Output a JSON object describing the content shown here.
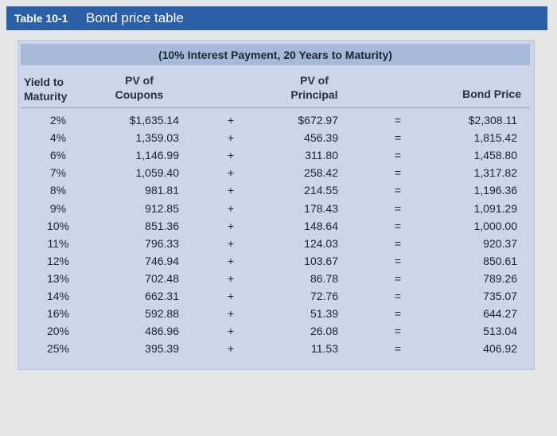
{
  "header": {
    "label": "Table 10-1",
    "title": "Bond price table"
  },
  "table": {
    "subtitle": "(10% Interest Payment, 20 Years to Maturity)",
    "columns": [
      [
        "Yield to",
        "Maturity"
      ],
      [
        "PV of",
        "Coupons"
      ],
      [
        "PV of",
        "Principal"
      ],
      [
        "Bond Price"
      ]
    ],
    "rows": [
      [
        "2%",
        "$1,635.14",
        "+",
        "$672.97",
        "=",
        "$2,308.11"
      ],
      [
        "4%",
        "1,359.03",
        "+",
        "456.39",
        "=",
        "1,815.42"
      ],
      [
        "6%",
        "1,146.99",
        "+",
        "311.80",
        "=",
        "1,458.80"
      ],
      [
        "7%",
        "1,059.40",
        "+",
        "258.42",
        "=",
        "1,317.82"
      ],
      [
        "8%",
        "981.81",
        "+",
        "214.55",
        "=",
        "1,196.36"
      ],
      [
        "9%",
        "912.85",
        "+",
        "178.43",
        "=",
        "1,091.29"
      ],
      [
        "10%",
        "851.36",
        "+",
        "148.64",
        "=",
        "1,000.00"
      ],
      [
        "11%",
        "796.33",
        "+",
        "124.03",
        "=",
        "920.37"
      ],
      [
        "12%",
        "746.94",
        "+",
        "103.67",
        "=",
        "850.61"
      ],
      [
        "13%",
        "702.48",
        "+",
        "86.78",
        "=",
        "789.26"
      ],
      [
        "14%",
        "662.31",
        "+",
        "72.76",
        "=",
        "735.07"
      ],
      [
        "16%",
        "592.88",
        "+",
        "51.39",
        "=",
        "644.27"
      ],
      [
        "20%",
        "486.96",
        "+",
        "26.08",
        "=",
        "513.04"
      ],
      [
        "25%",
        "395.39",
        "+",
        "11.53",
        "=",
        "406.92"
      ]
    ]
  }
}
